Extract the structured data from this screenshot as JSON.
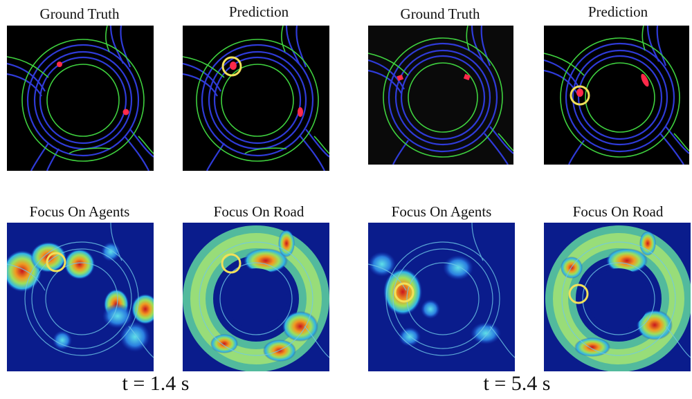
{
  "groups": [
    {
      "time_label": "t = 1.4 s",
      "top": [
        {
          "title": "Ground Truth"
        },
        {
          "title": "Prediction"
        }
      ],
      "bottom": [
        {
          "title": "Focus On Agents"
        },
        {
          "title": "Focus On Road"
        }
      ]
    },
    {
      "time_label": "t = 5.4 s",
      "top": [
        {
          "title": "Ground Truth"
        },
        {
          "title": "Prediction"
        }
      ],
      "bottom": [
        {
          "title": "Focus On Agents"
        },
        {
          "title": "Focus On Road"
        }
      ]
    }
  ],
  "colors": {
    "road_lane": "#2f3bd8",
    "road_edge": "#3fd13f",
    "agent": "#ff2a4a",
    "highlight_ring": "#f2e05a",
    "heat_low": "#0a1c8c",
    "heat_high": "#c8141e"
  }
}
